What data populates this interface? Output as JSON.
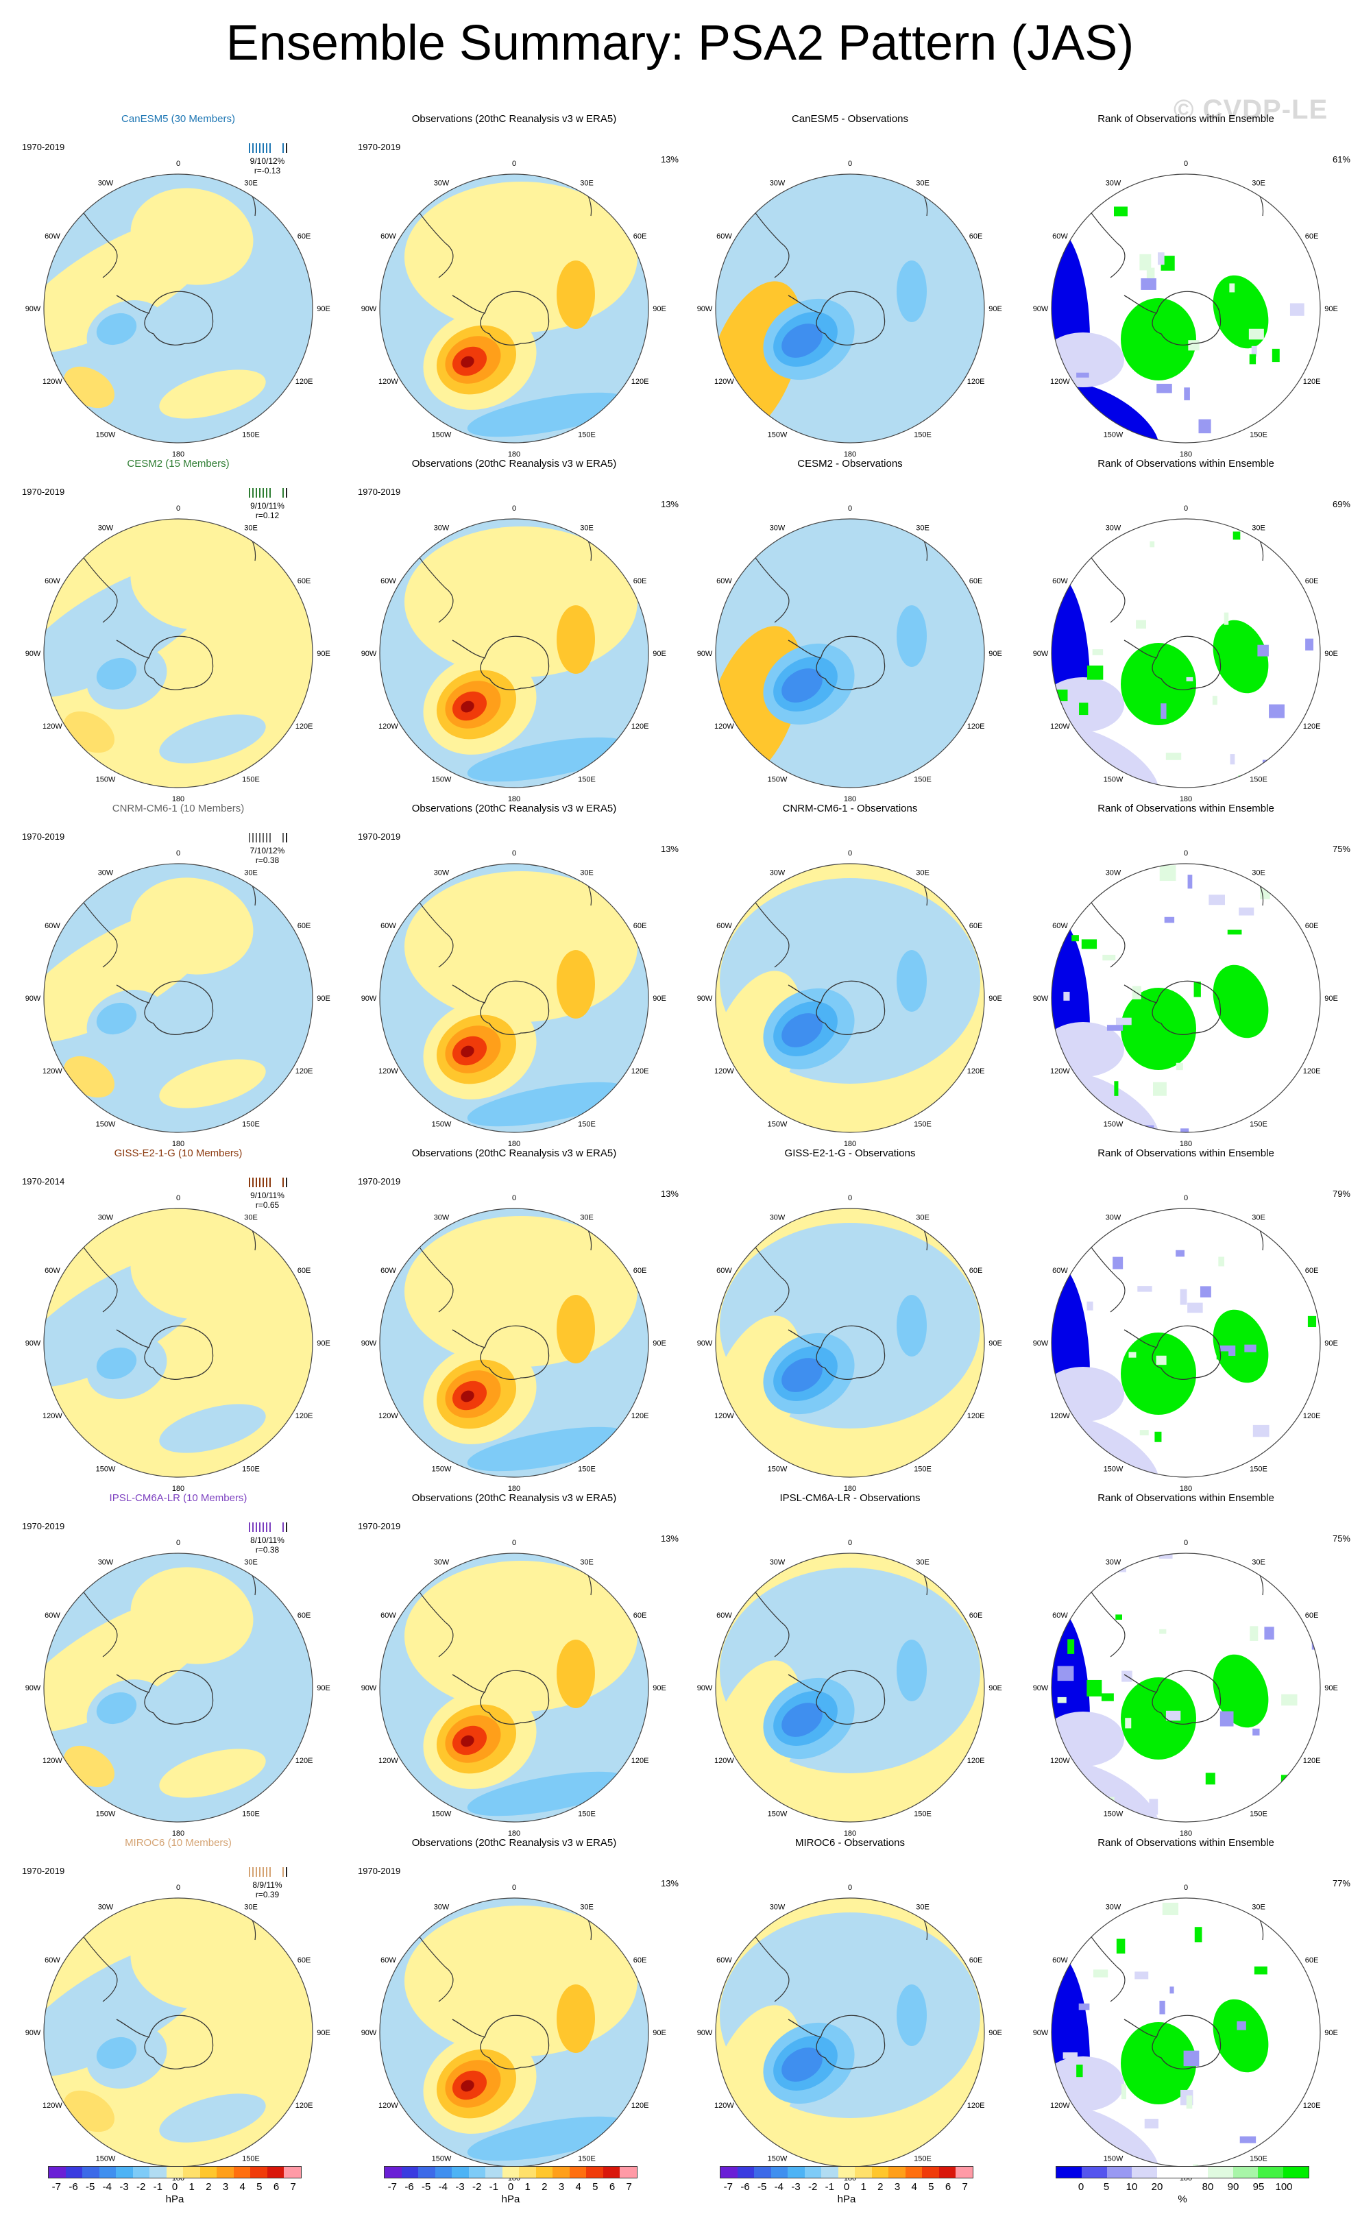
{
  "title": "Ensemble Summary: PSA2 Pattern (JAS)",
  "watermark": "© CVDP-LE",
  "obs_title": "Observations (20thC Reanalysis v3 w ERA5)",
  "rank_title": "Rank of Observations within Ensemble",
  "obs_period": "1970-2019",
  "obs_pct": "13%",
  "lon_labels": [
    "0",
    "30E",
    "60E",
    "90E",
    "120E",
    "150E",
    "180",
    "150W",
    "120W",
    "90W",
    "60W",
    "30W"
  ],
  "models": [
    {
      "name": "CanESM5 (30 Members)",
      "short": "CanESM5",
      "color": "#1f77b4",
      "period": "1970-2019",
      "stats1": "9/10/12%",
      "stats2": "r=-0.13",
      "rank_pct": "61%"
    },
    {
      "name": "CESM2 (15 Members)",
      "short": "CESM2",
      "color": "#2e7d32",
      "period": "1970-2019",
      "stats1": "9/10/11%",
      "stats2": "r=0.12",
      "rank_pct": "69%"
    },
    {
      "name": "CNRM-CM6-1 (10 Members)",
      "short": "CNRM-CM6-1",
      "color": "#666666",
      "period": "1970-2019",
      "stats1": "7/10/12%",
      "stats2": "r=0.38",
      "rank_pct": "75%"
    },
    {
      "name": "GISS-E2-1-G (10 Members)",
      "short": "GISS-E2-1-G",
      "color": "#8b3a0f",
      "period": "1970-2014",
      "stats1": "9/10/11%",
      "stats2": "r=0.65",
      "rank_pct": "79%"
    },
    {
      "name": "IPSL-CM6A-LR (10 Members)",
      "short": "IPSL-CM6A-LR",
      "color": "#7b3fbf",
      "period": "1970-2019",
      "stats1": "8/10/11%",
      "stats2": "r=0.38",
      "rank_pct": "75%"
    },
    {
      "name": "MIROC6 (10 Members)",
      "short": "MIROC6",
      "color": "#d4a373",
      "period": "1970-2019",
      "stats1": "8/9/11%",
      "stats2": "r=0.39",
      "rank_pct": "77%"
    }
  ],
  "diff_suffix": " - Observations",
  "colorbar_hpa": {
    "labels": [
      "-7",
      "-6",
      "-5",
      "-4",
      "-3",
      "-2",
      "-1",
      "0",
      "1",
      "2",
      "3",
      "4",
      "5",
      "6",
      "7"
    ],
    "colors": [
      "#6a1fd6",
      "#3a3be0",
      "#3c6ae8",
      "#3f8fef",
      "#4db3f5",
      "#7ecbf7",
      "#b1dcf2",
      "#fff39c",
      "#ffe06b",
      "#ffc62d",
      "#ff9f1a",
      "#ff6f0f",
      "#f03b0a",
      "#d9170b",
      "#ff9aa6"
    ],
    "unit": "hPa"
  },
  "colorbar_rank": {
    "labels": [
      "0",
      "5",
      "10",
      "20",
      "80",
      "90",
      "95",
      "100"
    ],
    "colors": [
      "#0000e8",
      "#5555ee",
      "#9999f2",
      "#d8d8f8",
      "#ffffff",
      "#ffffff",
      "#e0fae0",
      "#a8f5a8",
      "#44f244",
      "#00ee00"
    ],
    "unit": "%"
  }
}
